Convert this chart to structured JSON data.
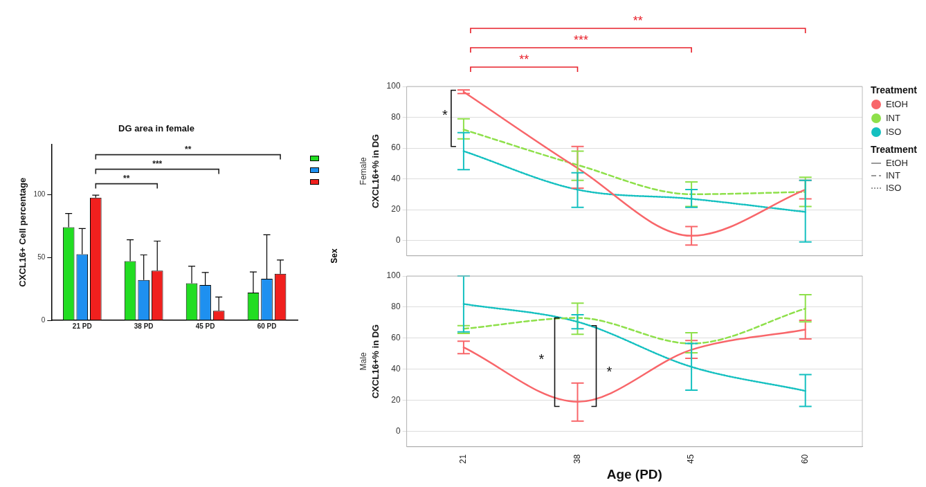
{
  "chart_data": [
    {
      "type": "bar",
      "title": "DG area in female",
      "ylabel": "CXCL16+ Cell percentage",
      "categories": [
        "21 PD",
        "38 PD",
        "45 PD",
        "60 PD"
      ],
      "series": [
        {
          "color": "#22dd22",
          "values": [
            74,
            47,
            29.5,
            22
          ],
          "errors": [
            [
              74,
              85
            ],
            [
              47,
              64
            ],
            [
              29.5,
              43
            ],
            [
              22,
              38.5
            ]
          ]
        },
        {
          "color": "#1e90f0",
          "values": [
            52.5,
            32,
            28,
            33
          ],
          "errors": [
            [
              52.5,
              73
            ],
            [
              32,
              52
            ],
            [
              28,
              38
            ],
            [
              33,
              68
            ]
          ]
        },
        {
          "color": "#f0201e",
          "values": [
            97.5,
            39.5,
            7.5,
            37
          ],
          "errors": [
            [
              97.5,
              99.5
            ],
            [
              39.5,
              63
            ],
            [
              7.5,
              18.5
            ],
            [
              37,
              48
            ]
          ]
        }
      ],
      "ylim": [
        0,
        140
      ],
      "yticks": [
        0,
        50,
        100
      ],
      "grid": false,
      "annotations": [
        "**",
        "***",
        "**"
      ]
    },
    {
      "type": "line",
      "subtitle": "Female",
      "ylabel": "CXCL16+% in DG",
      "categories": [
        "21",
        "38",
        "45",
        "60"
      ],
      "series": [
        {
          "name": "EtOH",
          "color": "#f8666a",
          "line_style": "solid",
          "values": [
            96.5,
            47,
            3,
            33
          ],
          "errors": [
            [
              95.4,
              97.8
            ],
            [
              34,
              61
            ],
            [
              -3,
              9
            ],
            [
              27,
              39
            ]
          ]
        },
        {
          "name": "INT",
          "color": "#8ee04a",
          "line_style": "dashed",
          "values": [
            72,
            49,
            30,
            31.5
          ],
          "errors": [
            [
              66,
              79
            ],
            [
              39,
              58
            ],
            [
              22,
              38
            ],
            [
              22,
              41
            ]
          ]
        },
        {
          "name": "ISO",
          "color": "#14c0c0",
          "line_style": "dotted",
          "values": [
            58,
            33,
            27,
            18.5
          ],
          "errors": [
            [
              46,
              70
            ],
            [
              21.5,
              44
            ],
            [
              21.5,
              33
            ],
            [
              -1,
              39
            ]
          ]
        }
      ],
      "ylim": [
        -10,
        100
      ],
      "yticks": [
        0,
        20,
        40,
        60,
        80,
        100
      ],
      "grid": "y",
      "marker": "none",
      "tick_labels": "y",
      "legend": "right",
      "legend_title": "Treatment",
      "annotations": [
        "Sex",
        "*",
        "**",
        "***",
        "**"
      ]
    },
    {
      "type": "line",
      "subtitle": "Male",
      "xlabel": "Age (PD)",
      "ylabel": "CXCL16+% in DG",
      "categories": [
        "21",
        "38",
        "45",
        "60"
      ],
      "series": [
        {
          "color": "#f8666a",
          "line_style": "solid",
          "values": [
            54,
            19,
            52.5,
            65.5
          ],
          "errors": [
            [
              50,
              58
            ],
            [
              6.5,
              31
            ],
            [
              47,
              58.5
            ],
            [
              59.5,
              71.5
            ]
          ]
        },
        {
          "color": "#8ee04a",
          "line_style": "dashed",
          "values": [
            66,
            73,
            56.5,
            79
          ],
          "errors": [
            [
              63,
              68
            ],
            [
              62.5,
              82.5
            ],
            [
              50.5,
              63.5
            ],
            [
              70.5,
              88
            ]
          ]
        },
        {
          "color": "#14c0c0",
          "line_style": "dotted",
          "values": [
            82,
            70.5,
            41.5,
            26
          ],
          "errors": [
            [
              64,
              100
            ],
            [
              66,
              75
            ],
            [
              26.5,
              56.5
            ],
            [
              16,
              36.5
            ]
          ]
        }
      ],
      "ylim": [
        -10,
        100
      ],
      "yticks": [
        0,
        20,
        40,
        60,
        80,
        100
      ],
      "grid": "y",
      "marker": "none",
      "annotations": [
        "*",
        "*"
      ]
    }
  ]
}
